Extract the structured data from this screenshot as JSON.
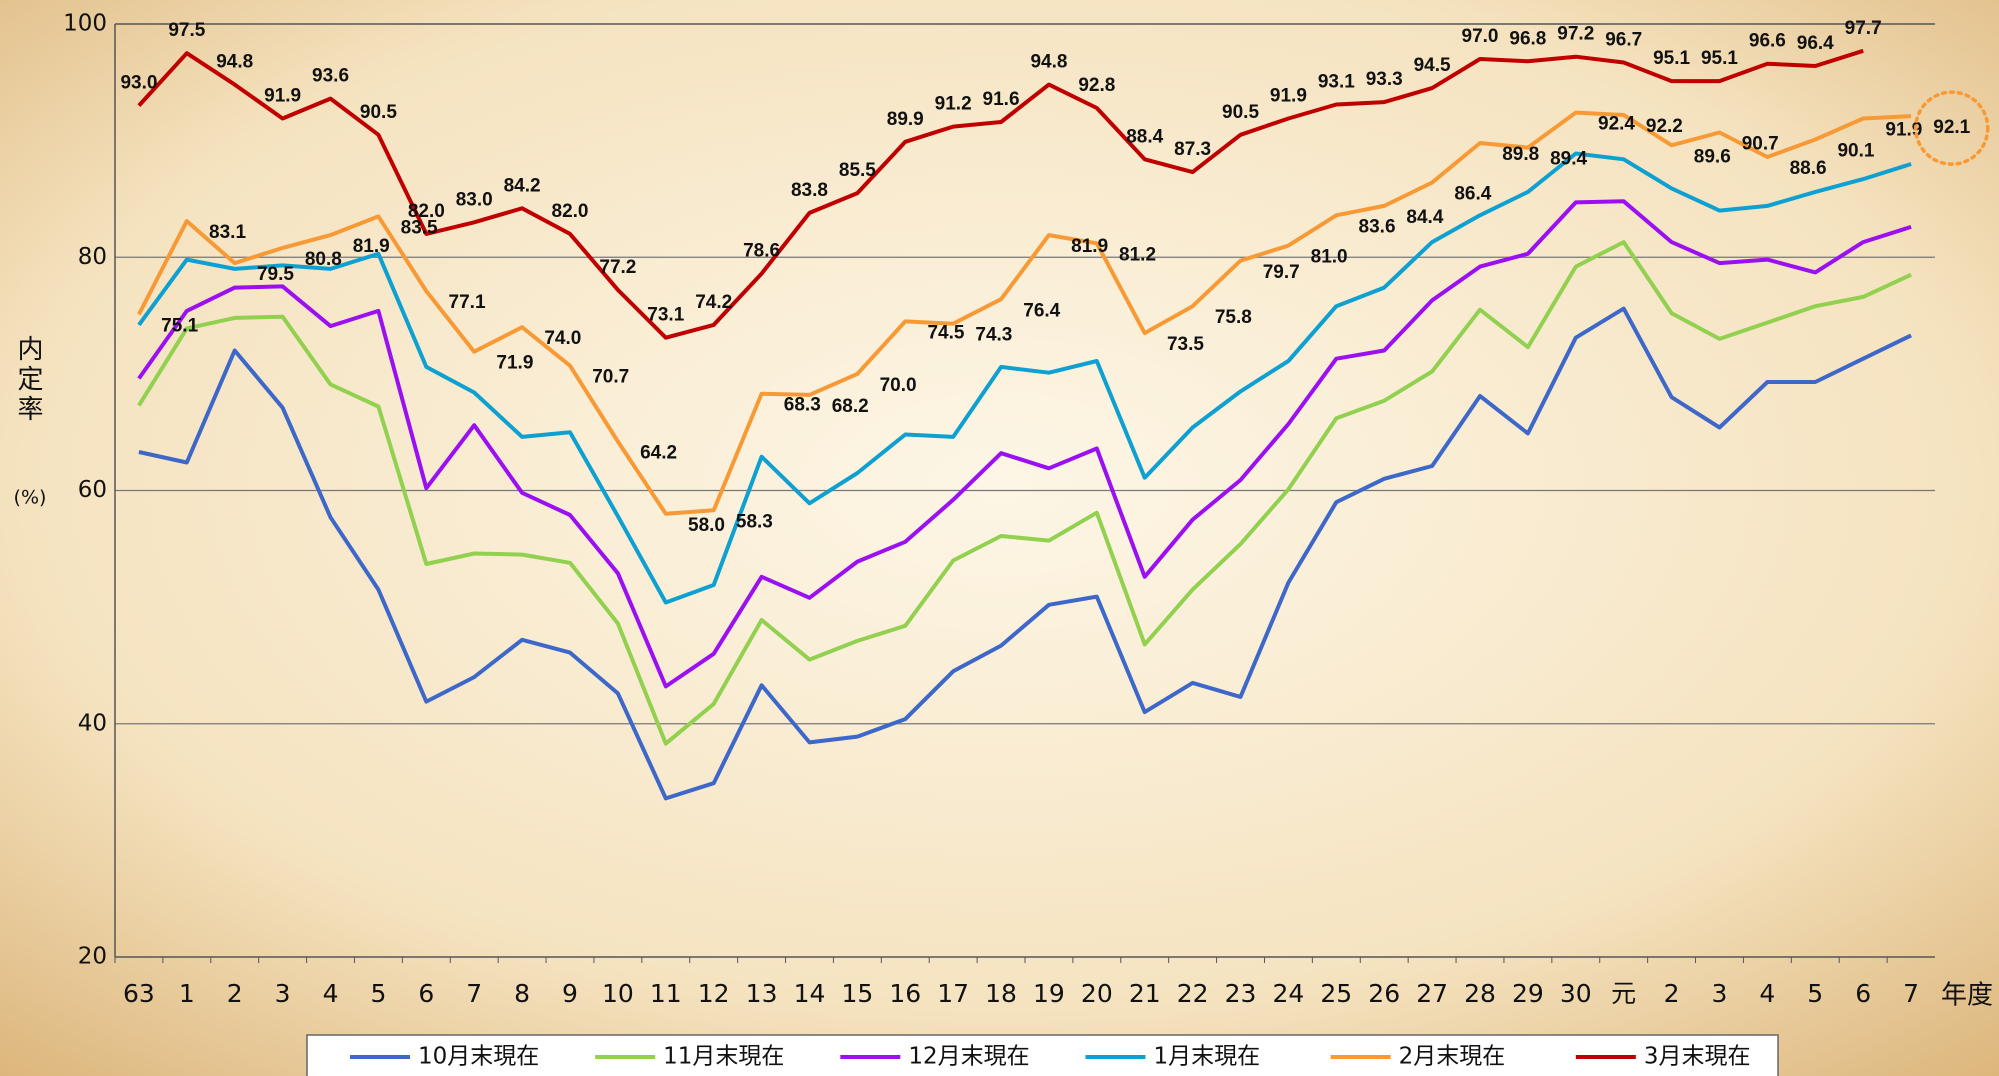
{
  "chart_data": {
    "type": "line",
    "y_label": "内定率",
    "y_label_unit": "(%)",
    "x_label": "年度",
    "categories": [
      "63",
      "1",
      "2",
      "3",
      "4",
      "5",
      "6",
      "7",
      "8",
      "9",
      "10",
      "11",
      "12",
      "13",
      "14",
      "15",
      "16",
      "17",
      "18",
      "19",
      "20",
      "21",
      "22",
      "23",
      "24",
      "25",
      "26",
      "27",
      "28",
      "29",
      "30",
      "元",
      "2",
      "3",
      "4",
      "5",
      "6",
      "7"
    ],
    "ylim": [
      20,
      100
    ],
    "yticks": [
      20,
      40,
      60,
      80,
      100
    ],
    "grid": true,
    "legend": "bottom",
    "series": [
      {
        "name": "10月末現在",
        "color": "#3d67c9",
        "values": [
          63.3,
          62.4,
          72.0,
          67.1,
          57.7,
          51.5,
          41.9,
          44.0,
          47.2,
          46.1,
          42.6,
          33.6,
          34.9,
          43.3,
          38.4,
          38.9,
          40.4,
          44.5,
          46.7,
          50.2,
          50.9,
          41.0,
          43.5,
          42.3,
          52.1,
          59.0,
          61.0,
          62.1,
          68.1,
          64.9,
          73.1,
          75.6,
          68.0,
          65.4,
          69.3,
          69.3,
          71.3,
          73.3
        ]
      },
      {
        "name": "11月末現在",
        "color": "#92d050",
        "values": [
          67.3,
          73.9,
          74.8,
          74.9,
          69.1,
          67.2,
          53.7,
          54.6,
          54.5,
          53.8,
          48.6,
          38.3,
          41.7,
          48.9,
          45.5,
          47.1,
          48.4,
          54.0,
          56.1,
          55.7,
          58.1,
          46.8,
          51.5,
          55.4,
          60.1,
          66.2,
          67.7,
          70.2,
          75.5,
          72.3,
          79.2,
          81.3,
          75.2,
          73.0,
          74.4,
          75.8,
          76.6,
          78.5
        ]
      },
      {
        "name": "12月末現在",
        "color": "#9b10f0",
        "values": [
          69.6,
          75.4,
          77.4,
          77.5,
          74.1,
          75.4,
          60.2,
          65.6,
          59.8,
          57.9,
          52.9,
          43.2,
          46.0,
          52.6,
          50.8,
          53.9,
          55.6,
          59.2,
          63.2,
          61.9,
          63.6,
          52.6,
          57.5,
          60.9,
          65.7,
          71.3,
          72.0,
          76.3,
          79.2,
          80.3,
          84.7,
          84.8,
          81.3,
          79.5,
          79.8,
          78.7,
          81.3,
          82.6
        ]
      },
      {
        "name": "1月末現在",
        "color": "#0fa0d2",
        "values": [
          74.2,
          79.8,
          79.0,
          79.3,
          79.0,
          80.3,
          70.6,
          68.4,
          64.6,
          65.0,
          57.8,
          50.4,
          51.9,
          62.9,
          58.9,
          61.5,
          64.8,
          64.6,
          70.6,
          70.1,
          71.1,
          61.1,
          65.4,
          68.5,
          71.1,
          75.8,
          77.4,
          81.3,
          83.6,
          85.6,
          88.9,
          88.4,
          85.9,
          84.0,
          84.4,
          85.6,
          86.7,
          88.0
        ]
      },
      {
        "name": "2月末現在",
        "color": "#f79a35",
        "values": [
          75.1,
          83.1,
          79.5,
          80.8,
          81.9,
          83.5,
          77.1,
          71.9,
          74.0,
          70.7,
          64.2,
          58.0,
          58.3,
          68.3,
          68.2,
          70.0,
          74.5,
          74.3,
          76.4,
          81.9,
          81.2,
          73.5,
          75.8,
          79.7,
          81.0,
          83.6,
          84.4,
          86.4,
          89.8,
          89.4,
          92.4,
          92.2,
          89.6,
          90.7,
          88.6,
          90.1,
          91.9,
          92.1
        ],
        "value_labels": [
          "75.1",
          "83.1",
          "79.5",
          "80.8",
          "81.9",
          "83.5",
          "77.1",
          "71.9",
          "74.0",
          "70.7",
          "64.2",
          "58.0",
          "58.3",
          "68.3",
          "68.2",
          "70.0",
          "74.5",
          "74.3",
          "76.4",
          "81.9",
          "81.2",
          "73.5",
          "75.8",
          "79.7",
          "81.0",
          "83.6",
          "84.4",
          "86.4",
          "89.8",
          "89.4",
          "92.4",
          "92.2",
          "89.6",
          "90.7",
          "88.6",
          "90.1",
          "91.9",
          "92.1"
        ]
      },
      {
        "name": "3月末現在",
        "color": "#c00000",
        "values": [
          93.0,
          97.5,
          94.8,
          91.9,
          93.6,
          90.5,
          82.0,
          83.0,
          84.2,
          82.0,
          77.2,
          73.1,
          74.2,
          78.6,
          83.8,
          85.5,
          89.9,
          91.2,
          91.6,
          94.8,
          92.8,
          88.4,
          87.3,
          90.5,
          91.9,
          93.1,
          93.3,
          94.5,
          97.0,
          96.8,
          97.2,
          96.7,
          95.1,
          95.1,
          96.6,
          96.4,
          97.7,
          null
        ],
        "value_labels": [
          "93.0",
          "97.5",
          "94.8",
          "91.9",
          "93.6",
          "90.5",
          "82.0",
          "83.0",
          "84.2",
          "82.0",
          "77.2",
          "73.1",
          "74.2",
          "78.6",
          "83.8",
          "85.5",
          "89.9",
          "91.2",
          "91.6",
          "94.8",
          "92.8",
          "88.4",
          "87.3",
          "90.5",
          "91.9",
          "93.1",
          "93.3",
          "94.5",
          "97.0",
          "96.8",
          "97.2",
          "96.7",
          "95.1",
          "95.1",
          "96.6",
          "96.4",
          "97.7",
          null
        ]
      }
    ]
  }
}
